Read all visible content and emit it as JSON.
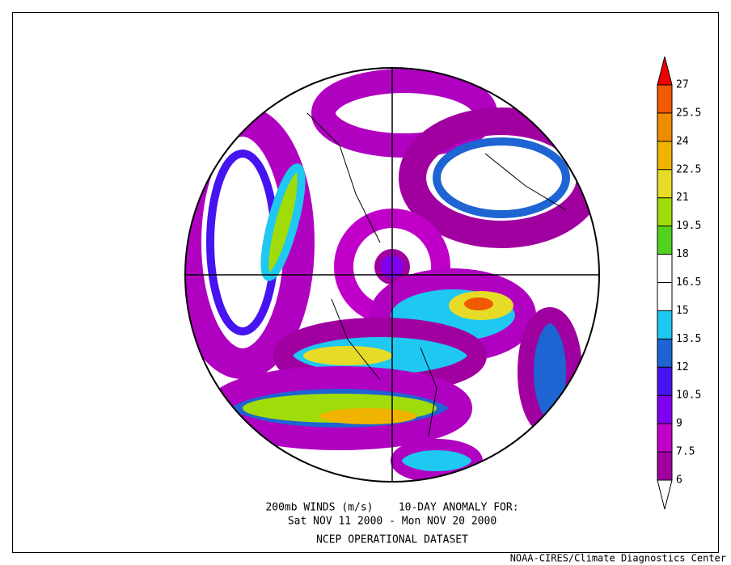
{
  "title_lines": [
    "200mb WINDS (m/s)    10-DAY ANOMALY FOR:",
    "Sat NOV 11 2000 - Mon NOV 20 2000",
    "NCEP OPERATIONAL DATASET"
  ],
  "credit": "NOAA-CIRES/Climate Diagnostics Center",
  "colorbar": {
    "ticks": [
      6,
      7.5,
      9,
      10.5,
      12,
      13.5,
      15,
      16.5,
      18,
      19.5,
      21,
      22.5,
      24,
      25.5,
      27
    ],
    "colors": [
      "#ffffff",
      "#a000a0",
      "#c000c8",
      "#8200f0",
      "#4614f0",
      "#1e64d2",
      "#1ec8f0",
      "#ffffff",
      "#ffffff",
      "#50d21e",
      "#a0dc0a",
      "#e6dc28",
      "#f0b400",
      "#f08c00",
      "#f05a00",
      "#f00000"
    ]
  }
}
